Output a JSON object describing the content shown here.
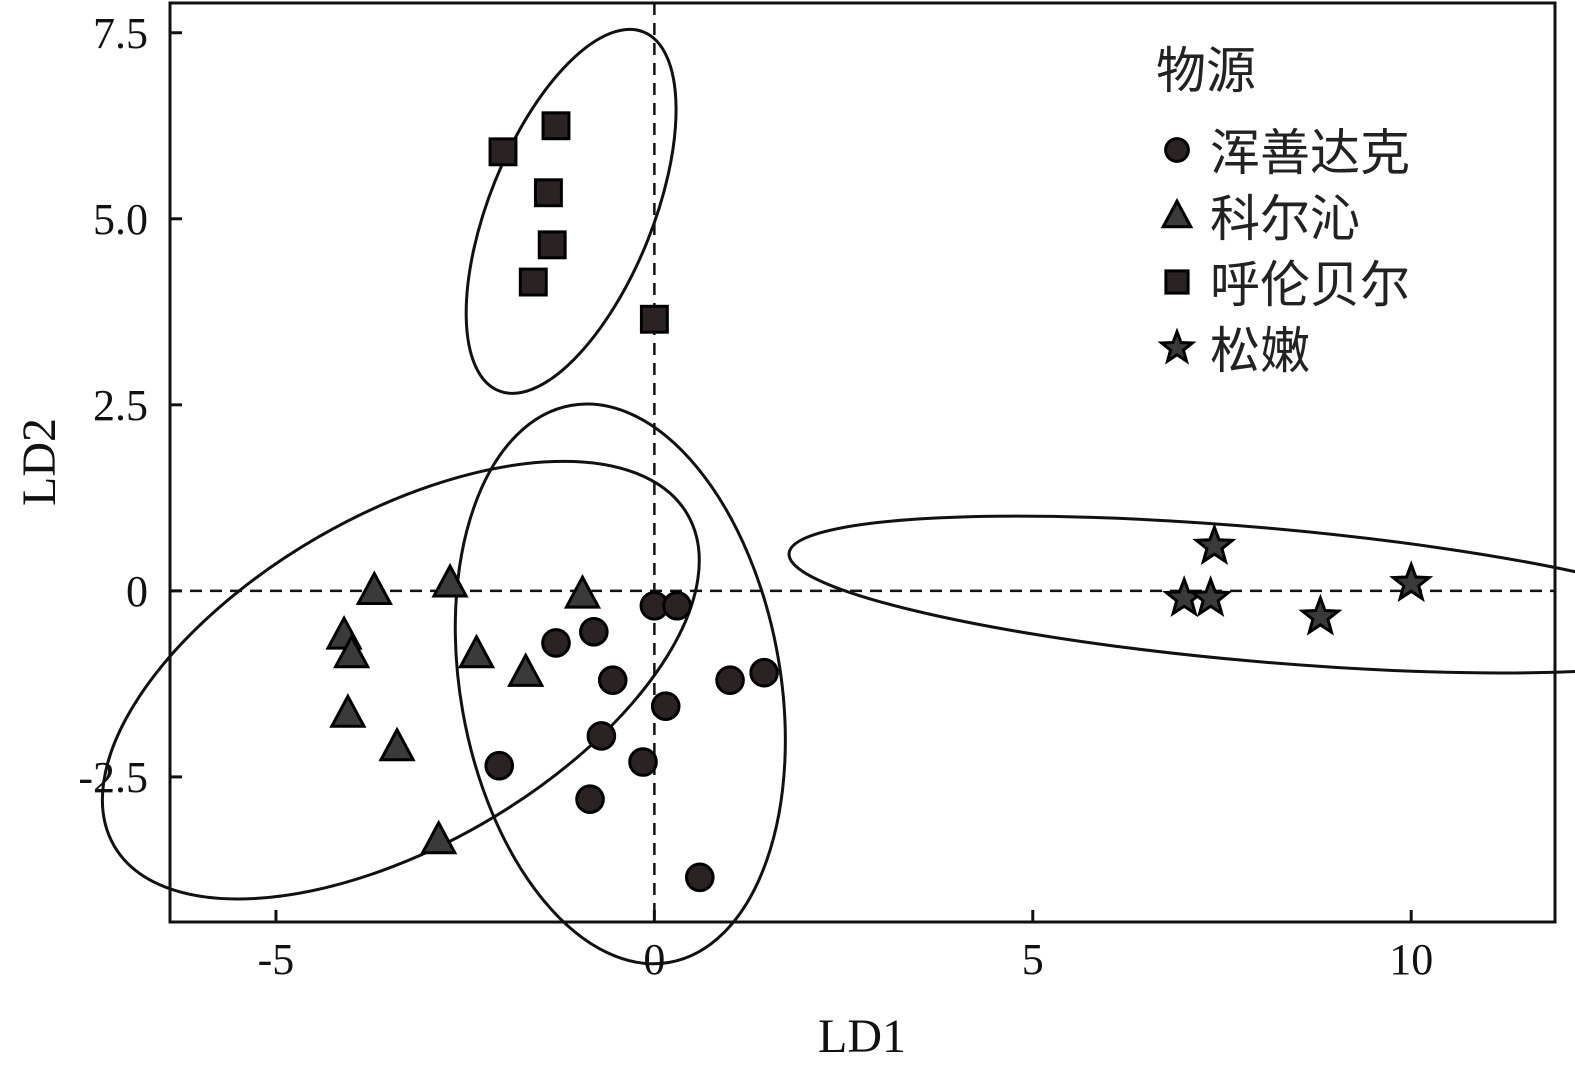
{
  "chart_data": {
    "type": "scatter",
    "xlabel": "LD1",
    "ylabel": "LD2",
    "xlim": [
      -6.4,
      11.9
    ],
    "ylim": [
      -4.45,
      7.9
    ],
    "xticks": [
      -5,
      0,
      5,
      10
    ],
    "xtick_labels": [
      "-5",
      "0",
      "5",
      "10"
    ],
    "yticks": [
      -2.5,
      0,
      2.5,
      5.0,
      7.5
    ],
    "ytick_labels": [
      "-2.5",
      "0",
      "2.5",
      "5.0",
      "7.5"
    ],
    "grid": false,
    "reference_lines": {
      "x": 0,
      "y": 0,
      "style": "dashed"
    },
    "legend": {
      "title": "物源",
      "placement": "top-right"
    },
    "series": [
      {
        "name": "浑善达克",
        "marker": "circle",
        "color": "#2b2323",
        "points": [
          [
            0.0,
            -0.2
          ],
          [
            0.3,
            -0.2
          ],
          [
            -0.8,
            -0.55
          ],
          [
            -1.3,
            -0.7
          ],
          [
            -0.55,
            -1.2
          ],
          [
            1.0,
            -1.2
          ],
          [
            1.45,
            -1.1
          ],
          [
            0.15,
            -1.55
          ],
          [
            -0.7,
            -1.95
          ],
          [
            -0.15,
            -2.3
          ],
          [
            -2.05,
            -2.35
          ],
          [
            -0.85,
            -2.8
          ],
          [
            0.6,
            -3.85
          ]
        ],
        "ellipse": {
          "center": [
            -0.45,
            -1.25
          ],
          "semi_axes": [
            3.8,
            2.15
          ],
          "angle_deg": -80
        }
      },
      {
        "name": "科尔沁",
        "marker": "triangle",
        "color": "#3a3a3a",
        "points": [
          [
            -3.7,
            0.0
          ],
          [
            -2.7,
            0.1
          ],
          [
            -0.95,
            -0.05
          ],
          [
            -4.1,
            -0.6
          ],
          [
            -4.0,
            -0.85
          ],
          [
            -2.35,
            -0.85
          ],
          [
            -1.7,
            -1.1
          ],
          [
            -4.05,
            -1.65
          ],
          [
            -3.4,
            -2.1
          ],
          [
            -2.85,
            -3.35
          ]
        ],
        "ellipse": {
          "center": [
            -3.35,
            -1.2
          ],
          "semi_axes": [
            4.45,
            2.22
          ],
          "angle_deg": 30
        }
      },
      {
        "name": "呼伦贝尔",
        "marker": "square",
        "color": "#2b2323",
        "points": [
          [
            -1.3,
            6.25
          ],
          [
            -2.0,
            5.9
          ],
          [
            -1.4,
            5.35
          ],
          [
            -1.35,
            4.65
          ],
          [
            -1.6,
            4.15
          ],
          [
            0.0,
            3.65
          ]
        ],
        "ellipse": {
          "center": [
            -1.1,
            5.1
          ],
          "semi_axes": [
            2.6,
            1.1
          ],
          "angle_deg": 68
        }
      },
      {
        "name": "松嫩",
        "marker": "star",
        "color": "#3a3a3a",
        "points": [
          [
            7.4,
            0.6
          ],
          [
            7.0,
            -0.1
          ],
          [
            7.35,
            -0.1
          ],
          [
            8.8,
            -0.35
          ],
          [
            10.0,
            0.1
          ]
        ],
        "ellipse": {
          "center": [
            8.0,
            -0.05
          ],
          "semi_axes": [
            6.35,
            0.9
          ],
          "angle_deg": -5
        }
      }
    ]
  }
}
